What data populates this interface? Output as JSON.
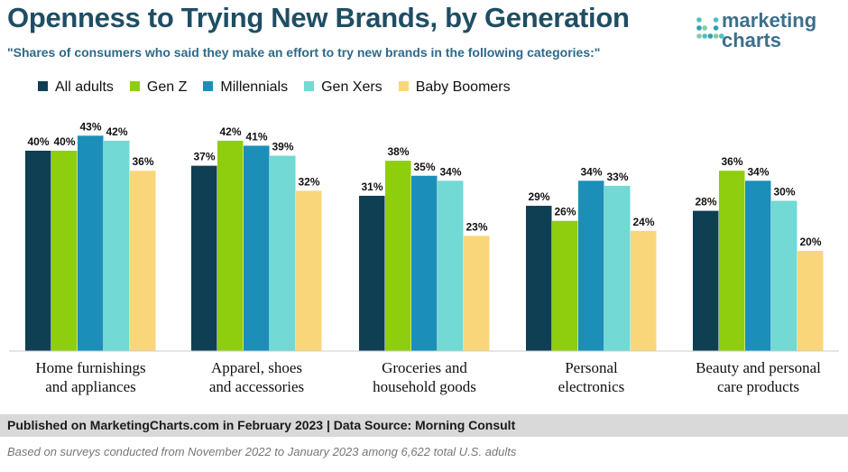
{
  "header": {
    "title": "Openness to Trying New Brands, by Generation",
    "subtitle": "\"Shares of consumers who said they make an effort to try new brands in the following categories:\""
  },
  "logo": {
    "line1": "marketing",
    "line2": "charts",
    "color": "#3d6f8a",
    "dot_colors": [
      "#4cc0c6",
      "#2f9fb1",
      "#80cfa0"
    ]
  },
  "chart_data": {
    "type": "bar",
    "categories": [
      [
        "Home furnishings",
        "and appliances"
      ],
      [
        "Apparel, shoes",
        "and accessories"
      ],
      [
        "Groceries and",
        "household goods"
      ],
      [
        "Personal",
        "electronics"
      ],
      [
        "Beauty and personal",
        "care products"
      ]
    ],
    "series": [
      {
        "name": "All adults",
        "color": "#0f3f53",
        "values": [
          40,
          37,
          31,
          29,
          28
        ]
      },
      {
        "name": "Gen Z",
        "color": "#8fce0e",
        "values": [
          40,
          42,
          38,
          26,
          36
        ]
      },
      {
        "name": "Millennials",
        "color": "#1b8fb8",
        "values": [
          43,
          41,
          35,
          34,
          34
        ]
      },
      {
        "name": "Gen Xers",
        "color": "#72d9d4",
        "values": [
          42,
          39,
          34,
          33,
          30
        ]
      },
      {
        "name": "Baby Boomers",
        "color": "#fad67b",
        "values": [
          36,
          32,
          23,
          24,
          20
        ]
      }
    ],
    "value_suffix": "%",
    "ylim": [
      0,
      50
    ],
    "grid": false,
    "legend_position": "top-left"
  },
  "footer": {
    "source": "Published on MarketingCharts.com in February 2023 | Data Source: Morning Consult",
    "note": "Based on surveys conducted from November 2022 to January 2023 among 6,622 total U.S. adults"
  }
}
